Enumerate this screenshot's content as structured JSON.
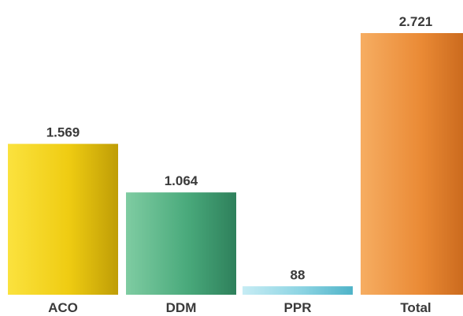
{
  "chart_data": {
    "type": "bar",
    "categories": [
      "ACO",
      "DDM",
      "PPR",
      "Total"
    ],
    "values": [
      1569,
      1064,
      88,
      2721
    ],
    "value_labels": [
      "1.569",
      "1.064",
      "88",
      "2.721"
    ],
    "ylim": [
      0,
      2721
    ],
    "grid": false,
    "legend": "none",
    "colors": [
      {
        "light": "#fbe23e",
        "mid": "#efcc12",
        "dark": "#bf9d06"
      },
      {
        "light": "#7fcca2",
        "mid": "#4aaa7c",
        "dark": "#2e805b"
      },
      {
        "light": "#c6ecf4",
        "mid": "#8ad3e2",
        "dark": "#4fb3c8"
      },
      {
        "light": "#f6ad62",
        "mid": "#ea8a35",
        "dark": "#c6651a"
      }
    ]
  }
}
